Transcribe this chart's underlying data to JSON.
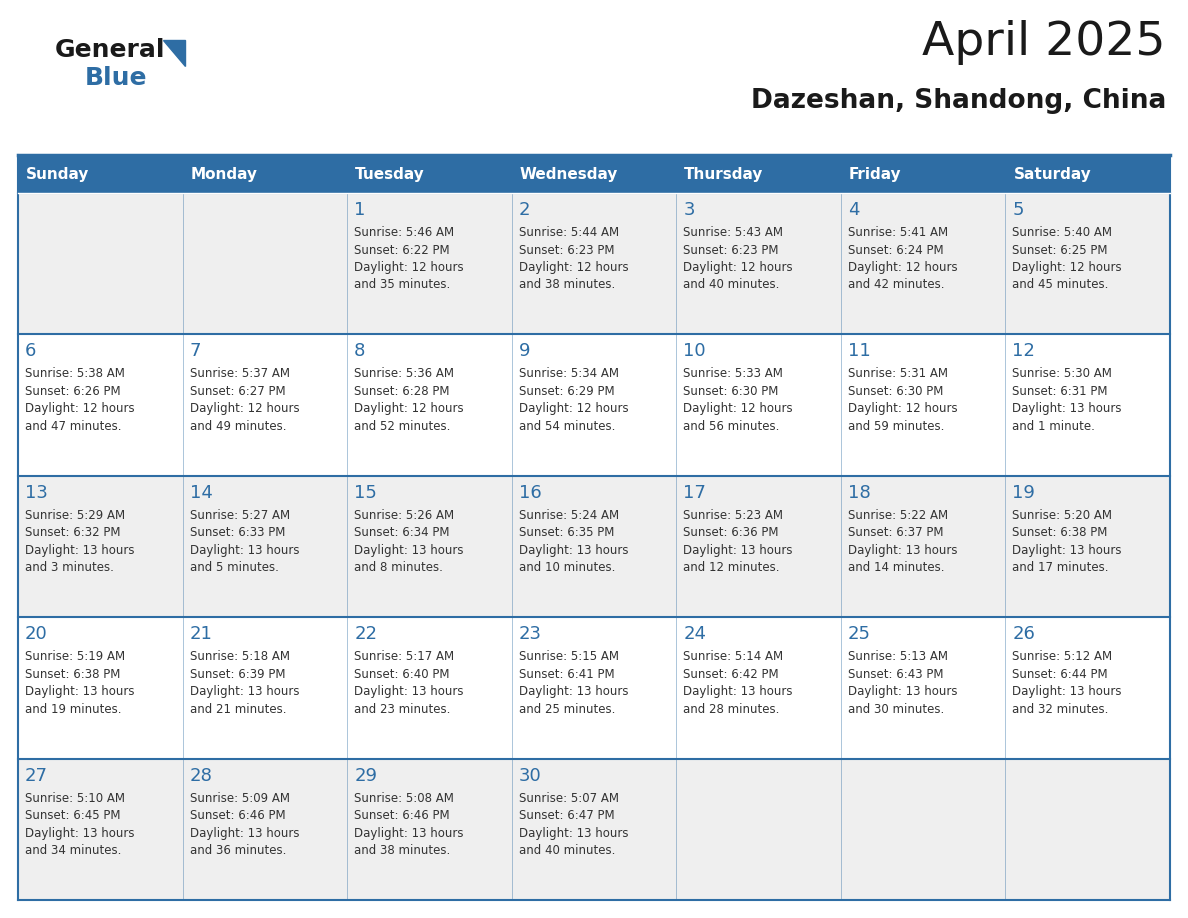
{
  "title": "April 2025",
  "subtitle": "Dazeshan, Shandong, China",
  "header_bg": "#2E6DA4",
  "header_text_color": "#FFFFFF",
  "cell_bg_even": "#EFEFEF",
  "cell_bg_odd": "#FFFFFF",
  "day_number_color": "#2E6DA4",
  "text_color": "#333333",
  "border_color": "#2E6DA4",
  "days_of_week": [
    "Sunday",
    "Monday",
    "Tuesday",
    "Wednesday",
    "Thursday",
    "Friday",
    "Saturday"
  ],
  "weeks": [
    [
      {
        "day": "",
        "sunrise": "",
        "sunset": "",
        "daylight": ""
      },
      {
        "day": "",
        "sunrise": "",
        "sunset": "",
        "daylight": ""
      },
      {
        "day": "1",
        "sunrise": "Sunrise: 5:46 AM",
        "sunset": "Sunset: 6:22 PM",
        "daylight": "Daylight: 12 hours\nand 35 minutes."
      },
      {
        "day": "2",
        "sunrise": "Sunrise: 5:44 AM",
        "sunset": "Sunset: 6:23 PM",
        "daylight": "Daylight: 12 hours\nand 38 minutes."
      },
      {
        "day": "3",
        "sunrise": "Sunrise: 5:43 AM",
        "sunset": "Sunset: 6:23 PM",
        "daylight": "Daylight: 12 hours\nand 40 minutes."
      },
      {
        "day": "4",
        "sunrise": "Sunrise: 5:41 AM",
        "sunset": "Sunset: 6:24 PM",
        "daylight": "Daylight: 12 hours\nand 42 minutes."
      },
      {
        "day": "5",
        "sunrise": "Sunrise: 5:40 AM",
        "sunset": "Sunset: 6:25 PM",
        "daylight": "Daylight: 12 hours\nand 45 minutes."
      }
    ],
    [
      {
        "day": "6",
        "sunrise": "Sunrise: 5:38 AM",
        "sunset": "Sunset: 6:26 PM",
        "daylight": "Daylight: 12 hours\nand 47 minutes."
      },
      {
        "day": "7",
        "sunrise": "Sunrise: 5:37 AM",
        "sunset": "Sunset: 6:27 PM",
        "daylight": "Daylight: 12 hours\nand 49 minutes."
      },
      {
        "day": "8",
        "sunrise": "Sunrise: 5:36 AM",
        "sunset": "Sunset: 6:28 PM",
        "daylight": "Daylight: 12 hours\nand 52 minutes."
      },
      {
        "day": "9",
        "sunrise": "Sunrise: 5:34 AM",
        "sunset": "Sunset: 6:29 PM",
        "daylight": "Daylight: 12 hours\nand 54 minutes."
      },
      {
        "day": "10",
        "sunrise": "Sunrise: 5:33 AM",
        "sunset": "Sunset: 6:30 PM",
        "daylight": "Daylight: 12 hours\nand 56 minutes."
      },
      {
        "day": "11",
        "sunrise": "Sunrise: 5:31 AM",
        "sunset": "Sunset: 6:30 PM",
        "daylight": "Daylight: 12 hours\nand 59 minutes."
      },
      {
        "day": "12",
        "sunrise": "Sunrise: 5:30 AM",
        "sunset": "Sunset: 6:31 PM",
        "daylight": "Daylight: 13 hours\nand 1 minute."
      }
    ],
    [
      {
        "day": "13",
        "sunrise": "Sunrise: 5:29 AM",
        "sunset": "Sunset: 6:32 PM",
        "daylight": "Daylight: 13 hours\nand 3 minutes."
      },
      {
        "day": "14",
        "sunrise": "Sunrise: 5:27 AM",
        "sunset": "Sunset: 6:33 PM",
        "daylight": "Daylight: 13 hours\nand 5 minutes."
      },
      {
        "day": "15",
        "sunrise": "Sunrise: 5:26 AM",
        "sunset": "Sunset: 6:34 PM",
        "daylight": "Daylight: 13 hours\nand 8 minutes."
      },
      {
        "day": "16",
        "sunrise": "Sunrise: 5:24 AM",
        "sunset": "Sunset: 6:35 PM",
        "daylight": "Daylight: 13 hours\nand 10 minutes."
      },
      {
        "day": "17",
        "sunrise": "Sunrise: 5:23 AM",
        "sunset": "Sunset: 6:36 PM",
        "daylight": "Daylight: 13 hours\nand 12 minutes."
      },
      {
        "day": "18",
        "sunrise": "Sunrise: 5:22 AM",
        "sunset": "Sunset: 6:37 PM",
        "daylight": "Daylight: 13 hours\nand 14 minutes."
      },
      {
        "day": "19",
        "sunrise": "Sunrise: 5:20 AM",
        "sunset": "Sunset: 6:38 PM",
        "daylight": "Daylight: 13 hours\nand 17 minutes."
      }
    ],
    [
      {
        "day": "20",
        "sunrise": "Sunrise: 5:19 AM",
        "sunset": "Sunset: 6:38 PM",
        "daylight": "Daylight: 13 hours\nand 19 minutes."
      },
      {
        "day": "21",
        "sunrise": "Sunrise: 5:18 AM",
        "sunset": "Sunset: 6:39 PM",
        "daylight": "Daylight: 13 hours\nand 21 minutes."
      },
      {
        "day": "22",
        "sunrise": "Sunrise: 5:17 AM",
        "sunset": "Sunset: 6:40 PM",
        "daylight": "Daylight: 13 hours\nand 23 minutes."
      },
      {
        "day": "23",
        "sunrise": "Sunrise: 5:15 AM",
        "sunset": "Sunset: 6:41 PM",
        "daylight": "Daylight: 13 hours\nand 25 minutes."
      },
      {
        "day": "24",
        "sunrise": "Sunrise: 5:14 AM",
        "sunset": "Sunset: 6:42 PM",
        "daylight": "Daylight: 13 hours\nand 28 minutes."
      },
      {
        "day": "25",
        "sunrise": "Sunrise: 5:13 AM",
        "sunset": "Sunset: 6:43 PM",
        "daylight": "Daylight: 13 hours\nand 30 minutes."
      },
      {
        "day": "26",
        "sunrise": "Sunrise: 5:12 AM",
        "sunset": "Sunset: 6:44 PM",
        "daylight": "Daylight: 13 hours\nand 32 minutes."
      }
    ],
    [
      {
        "day": "27",
        "sunrise": "Sunrise: 5:10 AM",
        "sunset": "Sunset: 6:45 PM",
        "daylight": "Daylight: 13 hours\nand 34 minutes."
      },
      {
        "day": "28",
        "sunrise": "Sunrise: 5:09 AM",
        "sunset": "Sunset: 6:46 PM",
        "daylight": "Daylight: 13 hours\nand 36 minutes."
      },
      {
        "day": "29",
        "sunrise": "Sunrise: 5:08 AM",
        "sunset": "Sunset: 6:46 PM",
        "daylight": "Daylight: 13 hours\nand 38 minutes."
      },
      {
        "day": "30",
        "sunrise": "Sunrise: 5:07 AM",
        "sunset": "Sunset: 6:47 PM",
        "daylight": "Daylight: 13 hours\nand 40 minutes."
      },
      {
        "day": "",
        "sunrise": "",
        "sunset": "",
        "daylight": ""
      },
      {
        "day": "",
        "sunrise": "",
        "sunset": "",
        "daylight": ""
      },
      {
        "day": "",
        "sunrise": "",
        "sunset": "",
        "daylight": ""
      }
    ]
  ],
  "fig_width": 11.88,
  "fig_height": 9.18,
  "dpi": 100
}
